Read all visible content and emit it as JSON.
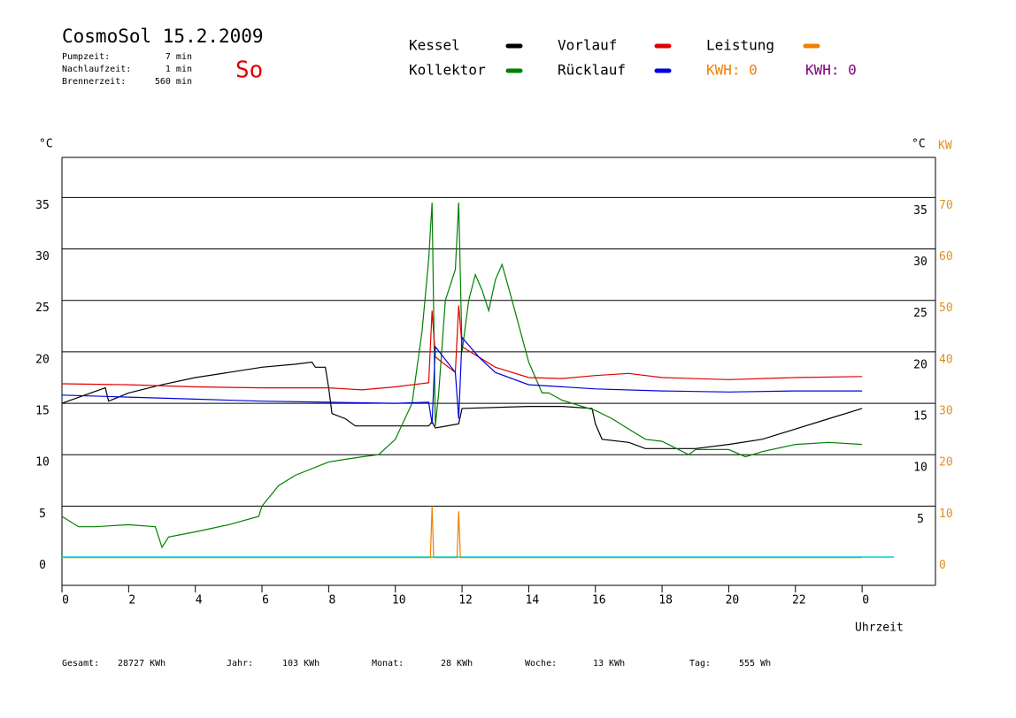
{
  "chart_data": {
    "type": "line",
    "title": "CosmoSol 15.2.2009",
    "day": "So",
    "info": [
      {
        "label": "Pumpzeit:",
        "value": "7 min"
      },
      {
        "label": "Nachlaufzeit:",
        "value": "1 min"
      },
      {
        "label": "Brennerzeit:",
        "value": "560 min"
      }
    ],
    "y_unit": "°C",
    "y2_unit": "KW",
    "xlabel": "Uhrzeit",
    "xlim": [
      0,
      26.2
    ],
    "xticks": [
      0,
      2,
      4,
      6,
      8,
      10,
      12,
      14,
      16,
      18,
      20,
      22,
      {
        "value": 24,
        "label": "0"
      }
    ],
    "ylim": [
      -2.7,
      38.9
    ],
    "yticks": [
      0,
      5,
      10,
      15,
      20,
      25,
      30,
      35
    ],
    "y2lim": [
      -5.4,
      77.8
    ],
    "y2ticks": [
      0,
      10,
      20,
      30,
      40,
      50,
      60,
      70
    ],
    "grid": true,
    "series": [
      {
        "name": "Kessel",
        "color": "#000000",
        "x": [
          0,
          1.3,
          1.4,
          2,
          3,
          4,
          5,
          6,
          7,
          7.5,
          7.6,
          7.9,
          8,
          8.1,
          8.5,
          8.8,
          10,
          11,
          11.1,
          11.2,
          11.9,
          12,
          14,
          15,
          15.9,
          16,
          16.2,
          17,
          17.5,
          19,
          20,
          21,
          22,
          23,
          24
        ],
        "values": [
          15,
          16.5,
          15.2,
          16,
          16.8,
          17.5,
          18,
          18.5,
          18.8,
          19,
          18.5,
          18.5,
          16.5,
          14,
          13.5,
          12.8,
          12.8,
          12.8,
          13.2,
          12.6,
          13,
          14.5,
          14.7,
          14.7,
          14.5,
          13,
          11.5,
          11.2,
          10.6,
          10.6,
          11,
          11.5,
          12.5,
          13.5,
          14.5
        ]
      },
      {
        "name": "Kollektor",
        "color": "#008000",
        "x": [
          0,
          0.5,
          1,
          2,
          2.8,
          3,
          3.2,
          4,
          5,
          5.9,
          6,
          6.5,
          7,
          8,
          9,
          9.5,
          10,
          10.5,
          10.8,
          11,
          11.1,
          11.2,
          11.3,
          11.5,
          11.8,
          11.9,
          12,
          12.2,
          12.4,
          12.6,
          12.8,
          13,
          13.2,
          13.5,
          14,
          14.4,
          14.6,
          15,
          16,
          16.5,
          17,
          17.5,
          18,
          18.8,
          19,
          20,
          20.5,
          21,
          22,
          23,
          24
        ],
        "values": [
          4,
          3,
          3,
          3.2,
          3,
          1,
          2,
          2.5,
          3.2,
          4,
          5,
          7,
          8,
          9.3,
          9.8,
          10,
          11.5,
          15,
          22,
          29,
          34.5,
          12.8,
          16,
          25,
          28,
          34.5,
          20,
          25,
          27.5,
          26,
          24,
          27,
          28.5,
          25,
          19,
          16,
          16,
          15.3,
          14.3,
          13.5,
          12.5,
          11.5,
          11.3,
          10,
          10.5,
          10.5,
          9.8,
          10.3,
          11,
          11.2,
          11
        ]
      },
      {
        "name": "Vorlauf",
        "color": "#e00000",
        "x": [
          0,
          2,
          4,
          6,
          8,
          9,
          10,
          11,
          11.1,
          11.2,
          11.8,
          11.9,
          12,
          13,
          14,
          15,
          16,
          17,
          18,
          20,
          22,
          24
        ],
        "values": [
          16.9,
          16.8,
          16.6,
          16.5,
          16.5,
          16.3,
          16.6,
          17,
          24,
          19.5,
          18,
          24.5,
          20.5,
          18.5,
          17.5,
          17.4,
          17.7,
          17.9,
          17.5,
          17.3,
          17.5,
          17.6
        ]
      },
      {
        "name": "Rücklauf",
        "color": "#0000e0",
        "x": [
          0,
          2,
          4,
          6,
          8,
          10,
          11,
          11.1,
          11.2,
          11.8,
          11.9,
          12,
          12.5,
          13,
          14,
          16,
          18,
          20,
          22,
          24
        ],
        "values": [
          15.8,
          15.6,
          15.4,
          15.2,
          15.1,
          15,
          15.1,
          13,
          20.5,
          18,
          13.5,
          21.4,
          19.5,
          18,
          16.8,
          16.4,
          16.2,
          16.1,
          16.2,
          16.2
        ]
      },
      {
        "name": "Leistung",
        "color": "#f08000",
        "axis": "y2",
        "x": [
          0,
          11.05,
          11.1,
          11.15,
          11.85,
          11.9,
          11.95,
          24
        ],
        "values": [
          0,
          0,
          10,
          0,
          0,
          9,
          0,
          0
        ]
      }
    ],
    "kwh_labels": [
      {
        "text": "KWH: 0",
        "color": "#f08000"
      },
      {
        "text": "KWH: 0",
        "color": "#800080"
      }
    ],
    "footer": [
      {
        "label": "Gesamt:",
        "value": "28727 KWh"
      },
      {
        "label": "Jahr:",
        "value": "103 KWh"
      },
      {
        "label": "Monat:",
        "value": "28 KWh"
      },
      {
        "label": "Woche:",
        "value": "13 KWh"
      },
      {
        "label": "Tag:",
        "value": "555 Wh"
      }
    ]
  }
}
